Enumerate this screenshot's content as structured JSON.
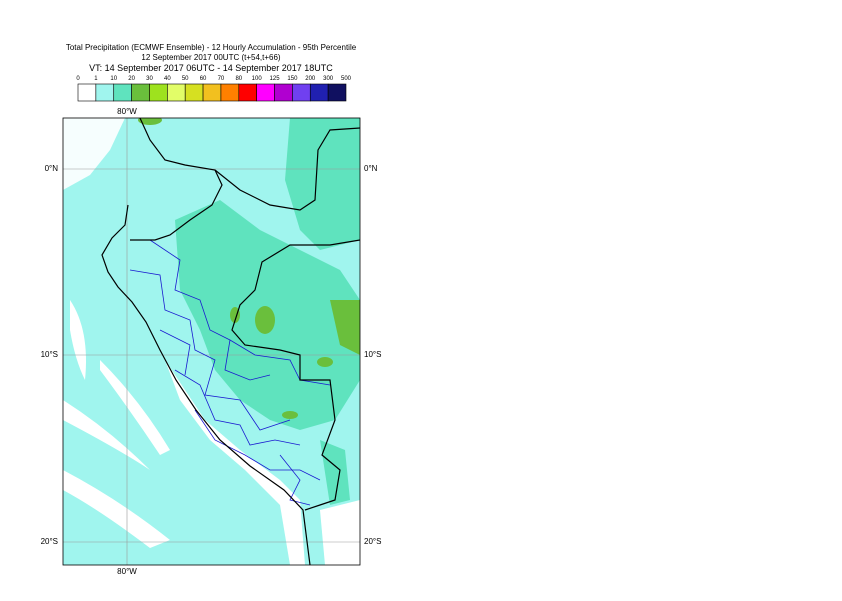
{
  "header": {
    "title": "Total Precipitation (ECMWF Ensemble) - 12 Hourly Accumulation - 95th Percentile",
    "base_time": "12 September 2017 00UTC (t+54,t+66)",
    "valid_time": "VT: 14 September 2017 06UTC - 14 September 2017 18UTC"
  },
  "legend": {
    "thresholds": [
      0,
      1,
      10,
      20,
      30,
      40,
      50,
      60,
      70,
      80,
      100,
      125,
      150,
      200,
      300,
      500
    ],
    "colors": [
      "#ffffff",
      "#a0f5ee",
      "#5fe3be",
      "#6abf3c",
      "#9ee21e",
      "#e2fd68",
      "#d6e021",
      "#f2c01f",
      "#ff8000",
      "#ff0000",
      "#ff00ff",
      "#b000d0",
      "#7040f0",
      "#2020b0",
      "#101060"
    ]
  },
  "map": {
    "lon_labels": [
      "80°W"
    ],
    "lat_labels": [
      "0°N",
      "10°S",
      "20°S"
    ]
  }
}
